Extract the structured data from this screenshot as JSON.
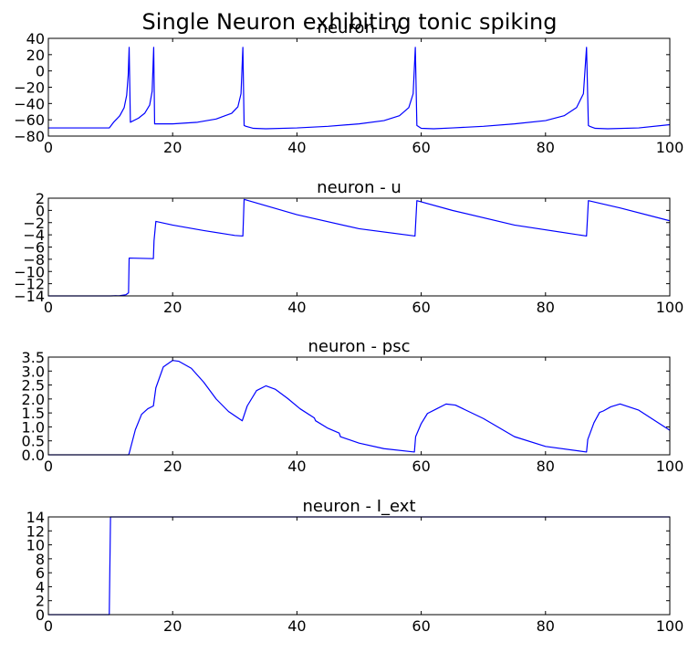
{
  "figure": {
    "suptitle": "Single Neuron exhibiting tonic spiking"
  },
  "colors": {
    "line": "#0000ff",
    "axes": "#000000",
    "background": "#ffffff"
  },
  "chart_data": [
    {
      "type": "line",
      "title": "neuron - v",
      "xlabel": "",
      "ylabel": "",
      "xlim": [
        0,
        100
      ],
      "ylim": [
        -80,
        40
      ],
      "xticks": [
        0,
        20,
        40,
        60,
        80,
        100
      ],
      "yticks": [
        -80,
        -60,
        -40,
        -20,
        0,
        20,
        40
      ],
      "grid": false,
      "series": [
        {
          "x": [
            0,
            9.8,
            10.5,
            11.5,
            12.2,
            12.6,
            12.85,
            13.0,
            13.2,
            14.5,
            15.5,
            16.3,
            16.7,
            16.95,
            17.1,
            17.3,
            20,
            24,
            27,
            29.5,
            30.5,
            31.0,
            31.3,
            31.5,
            31.8,
            33,
            35,
            40,
            45,
            50,
            54,
            56.5,
            58,
            58.7,
            59.05,
            59.3,
            59.5,
            60,
            62,
            65,
            70,
            75,
            80,
            83,
            85,
            86.1,
            86.6,
            86.9,
            87.1,
            88,
            90,
            95,
            100
          ],
          "y": [
            -70,
            -70,
            -63,
            -55,
            -45,
            -30,
            -5,
            29,
            -63,
            -58,
            -52,
            -42,
            -25,
            29,
            -65,
            -65,
            -65,
            -63,
            -59,
            -52,
            -44,
            -28,
            29,
            -67,
            -68,
            -70.5,
            -71,
            -70,
            -68,
            -65,
            -61,
            -55,
            -45,
            -28,
            29,
            -67,
            -68,
            -70.5,
            -71,
            -70,
            -68,
            -65,
            -61,
            -55,
            -45,
            -28,
            29,
            -67,
            -68,
            -70.5,
            -71,
            -70,
            -66
          ]
        }
      ]
    },
    {
      "type": "line",
      "title": "neuron - u",
      "xlabel": "",
      "ylabel": "",
      "xlim": [
        0,
        100
      ],
      "ylim": [
        -14,
        2
      ],
      "xticks": [
        0,
        20,
        40,
        60,
        80,
        100
      ],
      "yticks": [
        -14,
        -12,
        -10,
        -8,
        -6,
        -4,
        -2,
        0,
        2
      ],
      "grid": false,
      "series": [
        {
          "x": [
            0,
            10,
            11.5,
            12.5,
            12.9,
            13.0,
            16.9,
            17.0,
            17.3,
            20,
            25,
            30,
            31.3,
            31.5,
            40,
            50,
            59.0,
            59.3,
            65,
            75,
            86.6,
            86.9,
            92,
            100
          ],
          "y": [
            -14,
            -14,
            -13.95,
            -13.8,
            -13.5,
            -7.8,
            -7.9,
            -5,
            -1.8,
            -2.4,
            -3.3,
            -4.1,
            -4.2,
            1.8,
            -0.7,
            -3,
            -4.2,
            1.6,
            0,
            -2.4,
            -4.2,
            1.6,
            0.4,
            -1.7
          ]
        }
      ]
    },
    {
      "type": "line",
      "title": "neuron - psc",
      "xlabel": "",
      "ylabel": "",
      "xlim": [
        0,
        100
      ],
      "ylim": [
        0,
        3.5
      ],
      "xticks": [
        0,
        20,
        40,
        60,
        80,
        100
      ],
      "yticks": [
        0.0,
        0.5,
        1.0,
        1.5,
        2.0,
        2.5,
        3.0,
        3.5
      ],
      "grid": false,
      "series": [
        {
          "x": [
            0,
            12.9,
            13.0,
            14,
            15,
            16,
            16.9,
            17.3,
            18.5,
            20,
            21,
            23,
            25,
            27,
            29,
            31.2,
            32,
            33.5,
            35,
            36.5,
            38.5,
            40.5,
            42.8,
            43.0,
            45,
            46.8,
            47.0,
            50,
            54,
            58.9,
            59.1,
            60.0,
            61,
            62.5,
            64,
            65.5,
            70,
            75,
            80,
            86.6,
            86.8,
            87.8,
            88.7,
            89.3,
            90.5,
            92,
            95,
            100
          ],
          "y": [
            0,
            0,
            0.05,
            0.9,
            1.45,
            1.65,
            1.75,
            2.4,
            3.15,
            3.38,
            3.35,
            3.1,
            2.6,
            2.0,
            1.55,
            1.22,
            1.75,
            2.3,
            2.47,
            2.35,
            2.02,
            1.65,
            1.32,
            1.22,
            0.95,
            0.78,
            0.65,
            0.42,
            0.22,
            0.1,
            0.65,
            1.12,
            1.48,
            1.65,
            1.82,
            1.78,
            1.3,
            0.65,
            0.3,
            0.1,
            0.55,
            1.15,
            1.52,
            1.57,
            1.72,
            1.82,
            1.6,
            0.88
          ]
        }
      ]
    },
    {
      "type": "line",
      "title": "neuron - I_ext",
      "xlabel": "",
      "ylabel": "",
      "xlim": [
        0,
        100
      ],
      "ylim": [
        0,
        14
      ],
      "xticks": [
        0,
        20,
        40,
        60,
        80,
        100
      ],
      "yticks": [
        0,
        2,
        4,
        6,
        8,
        10,
        12,
        14
      ],
      "grid": false,
      "series": [
        {
          "x": [
            0,
            9.8,
            10.0,
            100
          ],
          "y": [
            0,
            0,
            14,
            14
          ]
        }
      ]
    }
  ]
}
